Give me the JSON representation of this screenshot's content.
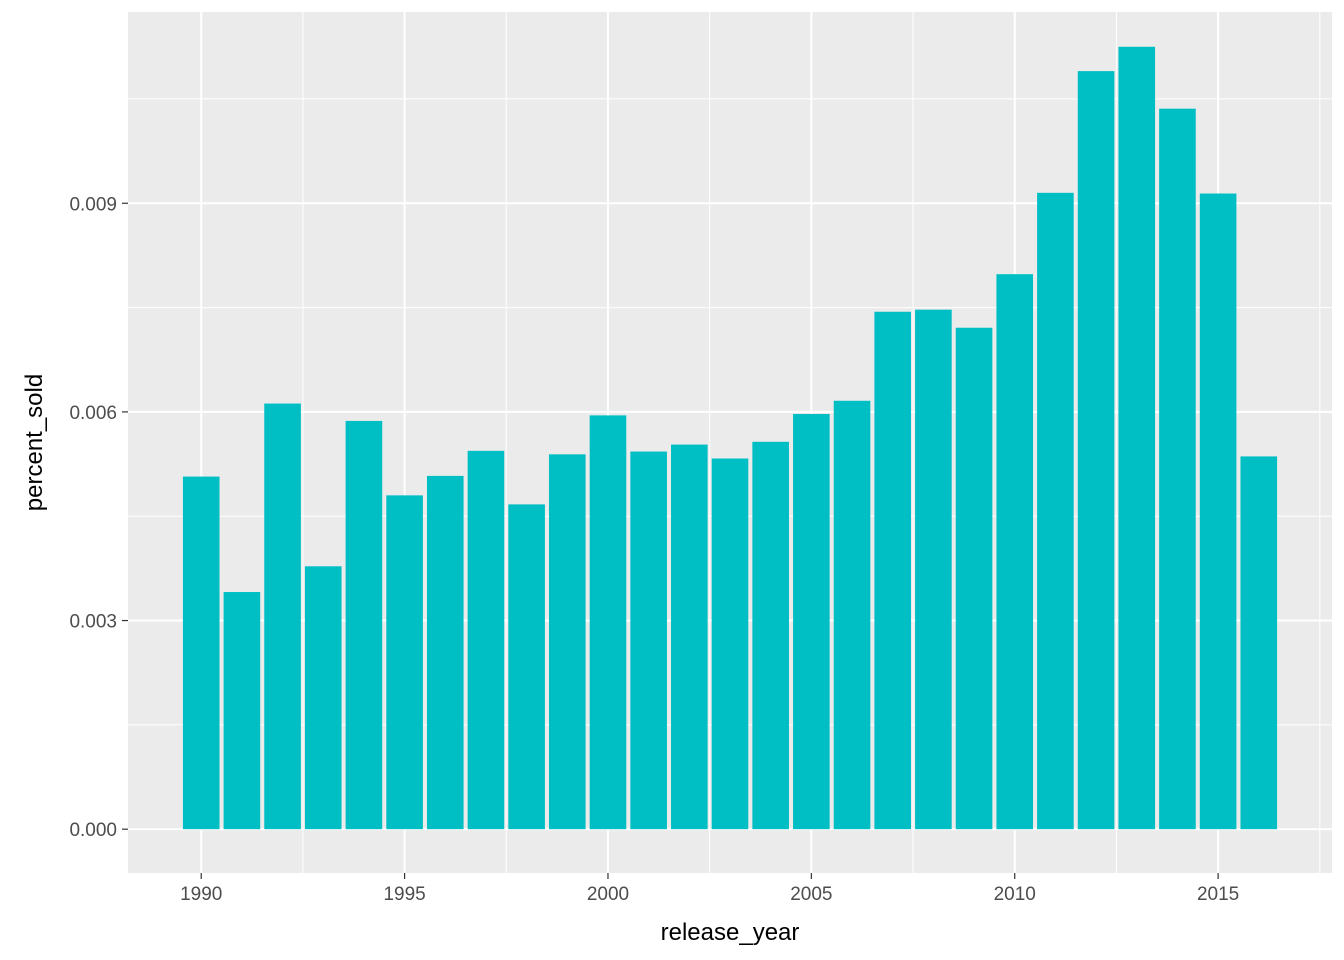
{
  "chart_data": {
    "type": "bar",
    "title": "",
    "xlabel": "release_year",
    "ylabel": "percent_sold",
    "x": [
      1990,
      1991,
      1992,
      1993,
      1994,
      1995,
      1996,
      1997,
      1998,
      1999,
      2000,
      2001,
      2002,
      2003,
      2004,
      2005,
      2006,
      2007,
      2008,
      2009,
      2010,
      2011,
      2012,
      2013,
      2014,
      2015,
      2016
    ],
    "values": [
      0.00507,
      0.00341,
      0.00612,
      0.00378,
      0.00587,
      0.0048,
      0.00508,
      0.00544,
      0.00467,
      0.00539,
      0.00595,
      0.00543,
      0.00553,
      0.00533,
      0.00557,
      0.00597,
      0.00616,
      0.00744,
      0.00747,
      0.00721,
      0.00798,
      0.00915,
      0.0109,
      0.01125,
      0.01036,
      0.00914,
      0.00536
    ],
    "xlim": [
      1988.2,
      2017.8
    ],
    "ylim": [
      -0.00063,
      0.01175
    ],
    "x_ticks": [
      1990,
      1995,
      2000,
      2005,
      2010,
      2015
    ],
    "x_tick_labels": [
      "1990",
      "1995",
      "2000",
      "2005",
      "2010",
      "2015"
    ],
    "y_ticks": [
      0,
      0.003,
      0.006,
      0.009
    ],
    "y_tick_labels": [
      "0.000",
      "0.003",
      "0.006",
      "0.009"
    ],
    "bar_width": 0.9,
    "grid": true,
    "colors": {
      "bar": "#00BFC4",
      "panel": "#EBEBEB",
      "grid": "#FFFFFF"
    }
  }
}
